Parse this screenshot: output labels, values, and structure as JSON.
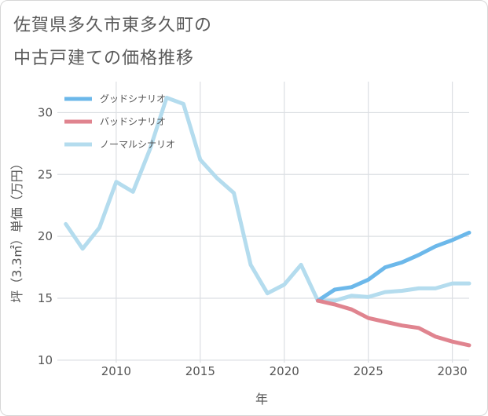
{
  "title_lines": [
    "佐賀県多久市東多久町の",
    "中古戸建ての価格推移"
  ],
  "chart_data": {
    "type": "line",
    "title": "佐賀県多久市東多久町の中古戸建ての価格推移",
    "xlabel": "年",
    "ylabel": "坪（3.3㎡）単価（万円）",
    "xlim": [
      2006.5,
      2031
    ],
    "ylim": [
      9.8,
      32.5
    ],
    "xticks": [
      2010,
      2015,
      2020,
      2025,
      2030
    ],
    "yticks": [
      10,
      15,
      20,
      25,
      30
    ],
    "grid": true,
    "legend_position": "top-left",
    "series": [
      {
        "name": "グッドシナリオ",
        "color": "#6cb8ea",
        "x": [
          2022,
          2023,
          2024,
          2025,
          2026,
          2027,
          2028,
          2029,
          2030,
          2031
        ],
        "y": [
          14.8,
          15.7,
          15.9,
          16.5,
          17.5,
          17.9,
          18.5,
          19.2,
          19.7,
          20.3
        ]
      },
      {
        "name": "バッドシナリオ",
        "color": "#e0848f",
        "x": [
          2022,
          2023,
          2024,
          2025,
          2026,
          2027,
          2028,
          2029,
          2030,
          2031
        ],
        "y": [
          14.8,
          14.5,
          14.1,
          13.4,
          13.1,
          12.8,
          12.6,
          11.9,
          11.5,
          11.2
        ]
      },
      {
        "name": "ノーマルシナリオ",
        "color": "#b4dcee",
        "x": [
          2007,
          2008,
          2009,
          2010,
          2011,
          2012,
          2013,
          2014,
          2015,
          2016,
          2017,
          2018,
          2019,
          2020,
          2021,
          2022,
          2023,
          2024,
          2025,
          2026,
          2027,
          2028,
          2029,
          2030,
          2031
        ],
        "y": [
          21.0,
          19.0,
          20.7,
          24.4,
          23.6,
          27.0,
          31.2,
          30.7,
          26.2,
          24.7,
          23.5,
          17.7,
          15.4,
          16.1,
          17.7,
          14.8,
          14.8,
          15.2,
          15.1,
          15.5,
          15.6,
          15.8,
          15.8,
          16.2,
          16.2
        ]
      }
    ]
  }
}
